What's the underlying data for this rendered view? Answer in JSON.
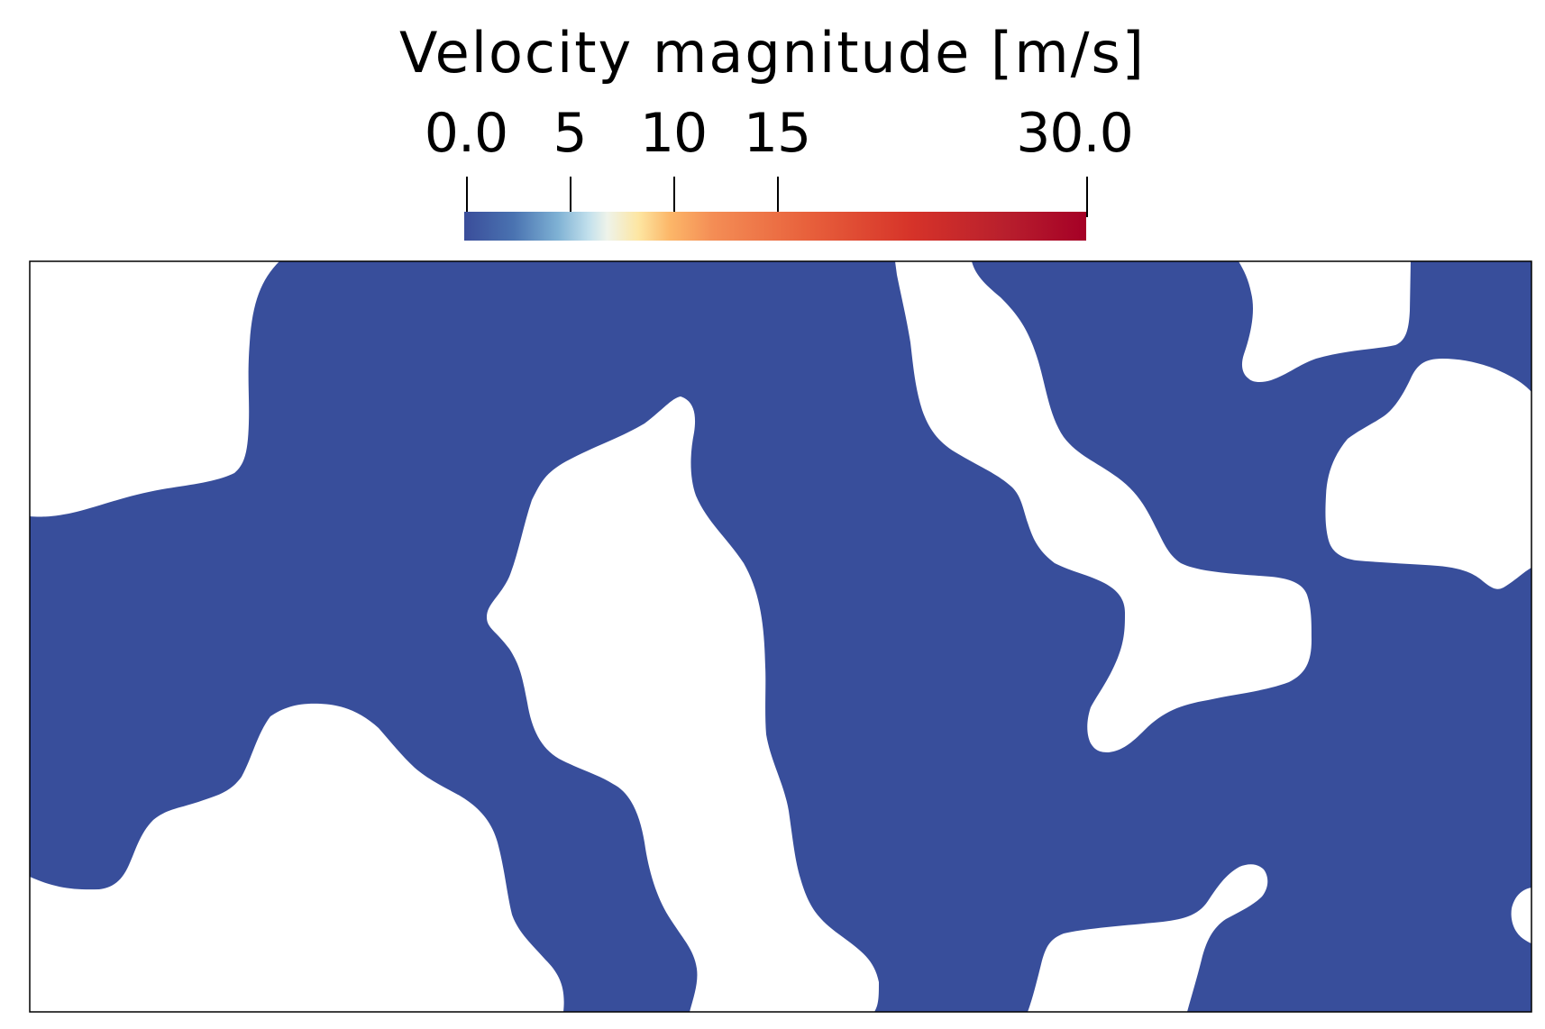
{
  "colorbar": {
    "title": "Velocity magnitude [m/s]",
    "min": 0.0,
    "max": 30.0,
    "ticks": [
      {
        "value": 0.0,
        "label": "0.0"
      },
      {
        "value": 5,
        "label": "5"
      },
      {
        "value": 10,
        "label": "10"
      },
      {
        "value": 15,
        "label": "15"
      },
      {
        "value": 30.0,
        "label": "30.0"
      }
    ],
    "colormap": "rdylbu-reversed",
    "colors": [
      "#3a4d9a",
      "#5a8cc2",
      "#a6d0e4",
      "#f1f0e8",
      "#fde08a",
      "#f9a05a",
      "#ee7040",
      "#d93a2a",
      "#b51d2c",
      "#a50026"
    ]
  },
  "field": {
    "fluid_color": "#384e9b",
    "solid_color": "#ffffff",
    "frame_color": "#000000"
  }
}
